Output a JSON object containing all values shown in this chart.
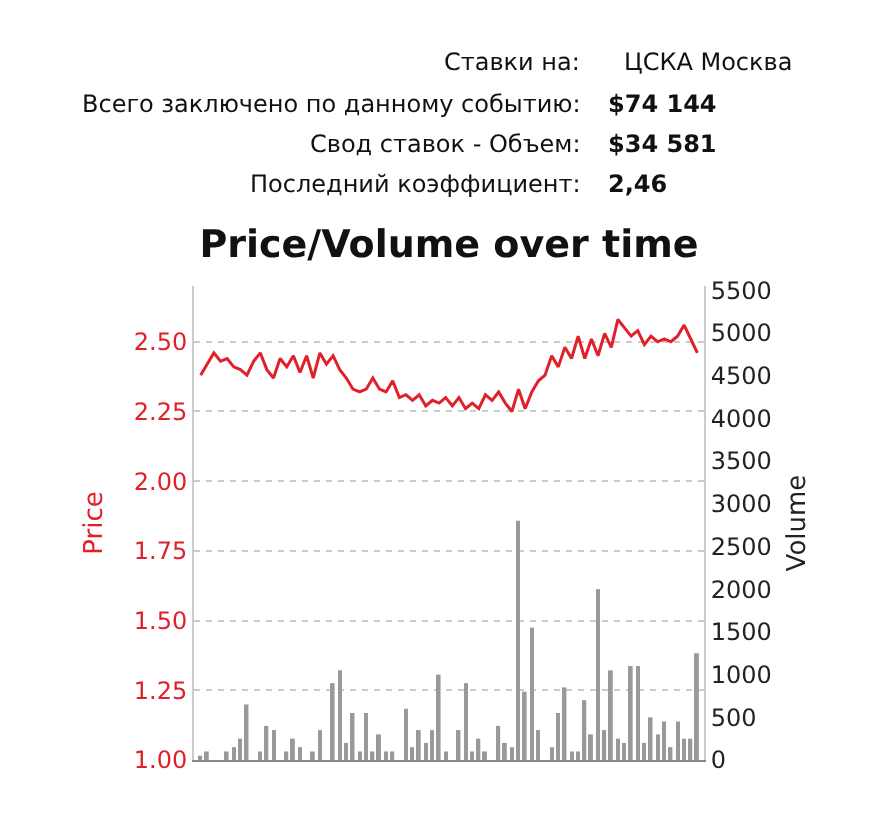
{
  "chart_data": {
    "type": "line",
    "title": "Price/Volume over time",
    "ylabel": "Price",
    "y2label": "Volume",
    "annotations": [
      "Ставки на:",
      "ЦСКА Москва",
      "Всего заключено по данному событию:",
      "$74 144",
      "Свод ставок - Объем:",
      "$34 581",
      "Последний коэффициент:",
      "2,46"
    ],
    "categories": [
      null,
      null,
      null,
      null,
      null,
      null,
      null,
      null,
      null,
      null,
      null,
      null,
      null,
      null,
      null,
      null,
      null,
      null,
      null,
      null,
      null,
      null,
      null,
      null,
      null,
      null,
      null,
      null,
      null,
      null,
      null,
      null,
      null,
      null,
      null,
      null,
      null,
      null,
      null,
      null,
      null,
      null,
      null,
      null,
      null,
      null,
      null,
      null,
      null,
      null,
      null,
      null,
      null,
      null,
      null,
      null,
      null,
      null,
      null,
      null,
      null,
      null,
      null,
      null,
      null,
      null,
      null,
      null,
      null,
      null,
      null,
      null,
      null,
      null,
      null,
      null
    ],
    "series": [
      {
        "type": "bar",
        "axis": "y2",
        "color": "#999999",
        "values": [
          50,
          100,
          null,
          null,
          100,
          150,
          250,
          650,
          null,
          100,
          400,
          350,
          null,
          100,
          250,
          150,
          null,
          100,
          350,
          null,
          900,
          1050,
          200,
          550,
          100,
          550,
          100,
          300,
          100,
          100,
          null,
          600,
          150,
          350,
          200,
          350,
          1000,
          100,
          null,
          350,
          900,
          100,
          250,
          100,
          null,
          400,
          200,
          150,
          2800,
          800,
          1550,
          350,
          null,
          150,
          550,
          850,
          100,
          100,
          700,
          300,
          2000,
          350,
          1050,
          250,
          200,
          1100,
          1100,
          200,
          500,
          300,
          450,
          150,
          450,
          250,
          250,
          1250
        ]
      },
      {
        "axis": "y",
        "color": "#e0202a",
        "values": [
          2.38,
          2.42,
          2.46,
          2.43,
          2.44,
          2.41,
          2.4,
          2.38,
          2.43,
          2.46,
          2.4,
          2.37,
          2.44,
          2.41,
          2.45,
          2.39,
          2.45,
          2.37,
          2.46,
          2.42,
          2.45,
          2.4,
          2.37,
          2.33,
          2.32,
          2.33,
          2.37,
          2.33,
          2.32,
          2.36,
          2.3,
          2.31,
          2.29,
          2.31,
          2.27,
          2.29,
          2.28,
          2.3,
          2.27,
          2.3,
          2.26,
          2.28,
          2.26,
          2.31,
          2.29,
          2.32,
          2.28,
          2.25,
          2.33,
          2.26,
          2.32,
          2.36,
          2.38,
          2.45,
          2.41,
          2.48,
          2.44,
          2.52,
          2.44,
          2.51,
          2.45,
          2.53,
          2.48,
          2.58,
          2.55,
          2.52,
          2.54,
          2.49,
          2.52,
          2.5,
          2.51,
          2.5,
          2.52,
          2.56,
          2.51,
          2.46
        ]
      }
    ],
    "ylim": [
      1.0,
      2.7
    ],
    "yticks": [
      {
        "value": 1.0,
        "label": "1.00"
      },
      {
        "value": 1.25,
        "label": "1.25"
      },
      {
        "value": 1.5,
        "label": "1.50"
      },
      {
        "value": 1.75,
        "label": "1.75"
      },
      {
        "value": 2.0,
        "label": "2.00"
      },
      {
        "value": 2.25,
        "label": "2.25"
      },
      {
        "value": 2.5,
        "label": "2.50"
      }
    ],
    "y2lim": [
      0,
      5550
    ],
    "y2ticks": [
      0,
      500,
      1000,
      1500,
      2000,
      2500,
      3000,
      3500,
      4000,
      4500,
      5000,
      5500
    ],
    "grid": "y",
    "marker": "none",
    "line_style": "solid"
  }
}
